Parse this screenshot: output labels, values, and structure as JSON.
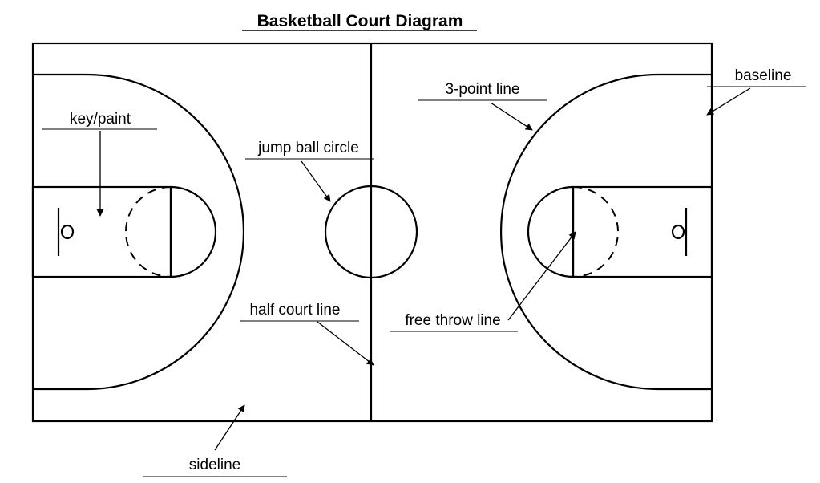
{
  "title": "Basketball Court Diagram",
  "labels": {
    "key_paint": "key/paint",
    "jump_ball_circle": "jump ball circle",
    "three_point_line": "3-point line",
    "baseline": "baseline",
    "half_court_line": "half court line",
    "free_throw_line": "free throw line",
    "sideline": "sideline"
  },
  "colors": {
    "lines": "#000000",
    "background": "#ffffff"
  }
}
